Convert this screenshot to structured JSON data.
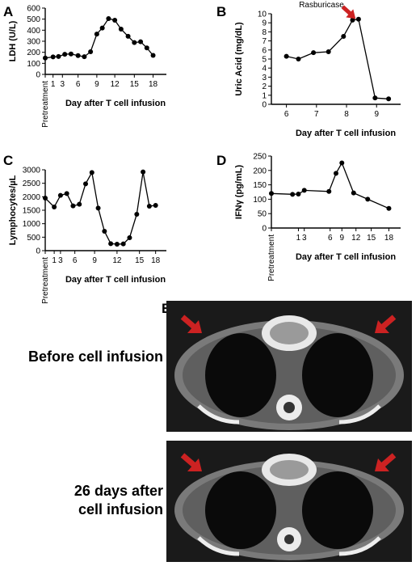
{
  "panels": [
    {
      "letter": "A",
      "extra_label": "",
      "chart_data": {
        "type": "line",
        "ylabel": "LDH (U/L)",
        "xlabel": "Day after T cell infusion",
        "ylim": [
          0,
          600
        ],
        "y_ticks": [
          0,
          100,
          200,
          300,
          400,
          500,
          600
        ],
        "x_ticks": [
          "Pretreatment",
          "1",
          "3",
          "6",
          "9",
          "12",
          "15",
          "18"
        ],
        "points": [
          {
            "x": 0,
            "y": 148
          },
          {
            "x": 1,
            "y": 158
          },
          {
            "x": 1.7,
            "y": 162
          },
          {
            "x": 2.5,
            "y": 182
          },
          {
            "x": 3.3,
            "y": 185
          },
          {
            "x": 4.2,
            "y": 170
          },
          {
            "x": 5,
            "y": 160
          },
          {
            "x": 5.8,
            "y": 205
          },
          {
            "x": 6.6,
            "y": 365
          },
          {
            "x": 7.3,
            "y": 420
          },
          {
            "x": 8.1,
            "y": 505
          },
          {
            "x": 8.9,
            "y": 490
          },
          {
            "x": 9.7,
            "y": 410
          },
          {
            "x": 10.6,
            "y": 345
          },
          {
            "x": 11.4,
            "y": 288
          },
          {
            "x": 12.2,
            "y": 295
          },
          {
            "x": 13,
            "y": 240
          },
          {
            "x": 13.8,
            "y": 172
          }
        ]
      }
    },
    {
      "letter": "B",
      "extra_label": "Rasburicase",
      "chart_data": {
        "type": "line",
        "ylabel": "Uric Acid (mg/dL)",
        "xlabel": "Day after T cell infusion",
        "ylim": [
          0,
          10
        ],
        "y_ticks": [
          0,
          1,
          2,
          3,
          4,
          5,
          6,
          7,
          8,
          9,
          10
        ],
        "x_ticks": [
          "6",
          "7",
          "8",
          "9"
        ],
        "arrow_at": {
          "x": 8.25,
          "y": 9.7
        },
        "points": [
          {
            "x": 6,
            "y": 5.3
          },
          {
            "x": 6.4,
            "y": 5.0
          },
          {
            "x": 6.9,
            "y": 5.7
          },
          {
            "x": 7.4,
            "y": 5.8
          },
          {
            "x": 7.9,
            "y": 7.5
          },
          {
            "x": 8.2,
            "y": 9.3
          },
          {
            "x": 8.4,
            "y": 9.4
          },
          {
            "x": 8.95,
            "y": 0.7
          },
          {
            "x": 9.4,
            "y": 0.6
          }
        ]
      }
    },
    {
      "letter": "C",
      "extra_label": "",
      "chart_data": {
        "type": "line",
        "ylabel": "Lymphocytes/µL",
        "xlabel": "Day after T cell infusion",
        "ylim": [
          0,
          3000
        ],
        "y_ticks": [
          0,
          500,
          1000,
          1500,
          2000,
          2500,
          3000
        ],
        "x_ticks": [
          "Pretreatment",
          "1",
          "3",
          "6",
          "9",
          "12",
          "15",
          "18"
        ],
        "points": [
          {
            "x": 0,
            "y": 1950
          },
          {
            "x": 1,
            "y": 1620
          },
          {
            "x": 1.7,
            "y": 2050
          },
          {
            "x": 2.4,
            "y": 2120
          },
          {
            "x": 3.1,
            "y": 1660
          },
          {
            "x": 3.8,
            "y": 1720
          },
          {
            "x": 4.5,
            "y": 2480
          },
          {
            "x": 5.2,
            "y": 2900
          },
          {
            "x": 5.9,
            "y": 1580
          },
          {
            "x": 6.6,
            "y": 720
          },
          {
            "x": 7.3,
            "y": 260
          },
          {
            "x": 8,
            "y": 240
          },
          {
            "x": 8.7,
            "y": 250
          },
          {
            "x": 9.4,
            "y": 480
          },
          {
            "x": 10.2,
            "y": 1350
          },
          {
            "x": 10.9,
            "y": 2920
          },
          {
            "x": 11.6,
            "y": 1650
          },
          {
            "x": 12.3,
            "y": 1680
          }
        ]
      }
    },
    {
      "letter": "D",
      "extra_label": "",
      "chart_data": {
        "type": "line",
        "ylabel": "IFNγ (pg/mL)",
        "xlabel": "Day after T cell infusion",
        "ylim": [
          0,
          250
        ],
        "y_ticks": [
          0,
          50,
          100,
          150,
          200,
          250
        ],
        "x_ticks": [
          "Pretreatment",
          "1",
          "3",
          "6",
          "9",
          "12",
          "15",
          "18"
        ],
        "points": [
          {
            "x": 0,
            "y": 120
          },
          {
            "x": 1.8,
            "y": 117
          },
          {
            "x": 2.3,
            "y": 118
          },
          {
            "x": 2.8,
            "y": 131
          },
          {
            "x": 4.9,
            "y": 127
          },
          {
            "x": 5.5,
            "y": 190
          },
          {
            "x": 6.0,
            "y": 226
          },
          {
            "x": 7.0,
            "y": 122
          },
          {
            "x": 8.2,
            "y": 100
          },
          {
            "x": 10.0,
            "y": 68
          }
        ]
      }
    }
  ],
  "panel_e": {
    "letter": "E",
    "scans": [
      {
        "caption_lines": [
          "Before cell infusion"
        ]
      },
      {
        "caption_lines": [
          "26 days after",
          "cell infusion"
        ]
      }
    ]
  }
}
